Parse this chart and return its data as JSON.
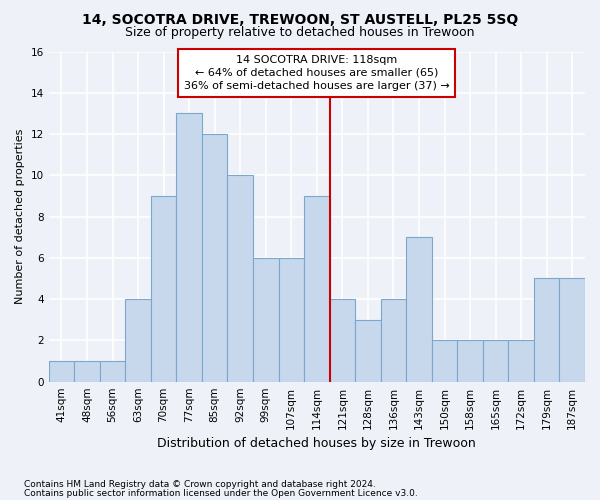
{
  "title": "14, SOCOTRA DRIVE, TREWOON, ST AUSTELL, PL25 5SQ",
  "subtitle": "Size of property relative to detached houses in Trewoon",
  "xlabel": "Distribution of detached houses by size in Trewoon",
  "ylabel": "Number of detached properties",
  "footer1": "Contains HM Land Registry data © Crown copyright and database right 2024.",
  "footer2": "Contains public sector information licensed under the Open Government Licence v3.0.",
  "annotation_line1": "14 SOCOTRA DRIVE: 118sqm",
  "annotation_line2": "← 64% of detached houses are smaller (65)",
  "annotation_line3": "36% of semi-detached houses are larger (37) →",
  "property_size_index": 10.5,
  "bar_color": "#c8d8ec",
  "bar_edge_color": "#7aa8cc",
  "highlight_color": "#cc0000",
  "categories": [
    "41sqm",
    "48sqm",
    "56sqm",
    "63sqm",
    "70sqm",
    "77sqm",
    "85sqm",
    "92sqm",
    "99sqm",
    "107sqm",
    "114sqm",
    "121sqm",
    "128sqm",
    "136sqm",
    "143sqm",
    "150sqm",
    "158sqm",
    "165sqm",
    "172sqm",
    "179sqm",
    "187sqm"
  ],
  "values": [
    1,
    1,
    1,
    4,
    9,
    13,
    12,
    10,
    6,
    6,
    9,
    4,
    3,
    4,
    7,
    2,
    2,
    2,
    2,
    5,
    5
  ],
  "ylim": [
    0,
    16
  ],
  "yticks": [
    0,
    2,
    4,
    6,
    8,
    10,
    12,
    14,
    16
  ],
  "bg_color": "#eef2f8",
  "grid_color": "#ffffff",
  "title_fontsize": 10,
  "subtitle_fontsize": 9,
  "annotation_fontsize": 8,
  "ylabel_fontsize": 8,
  "xlabel_fontsize": 9,
  "tick_fontsize": 7.5,
  "footer_fontsize": 6.5
}
